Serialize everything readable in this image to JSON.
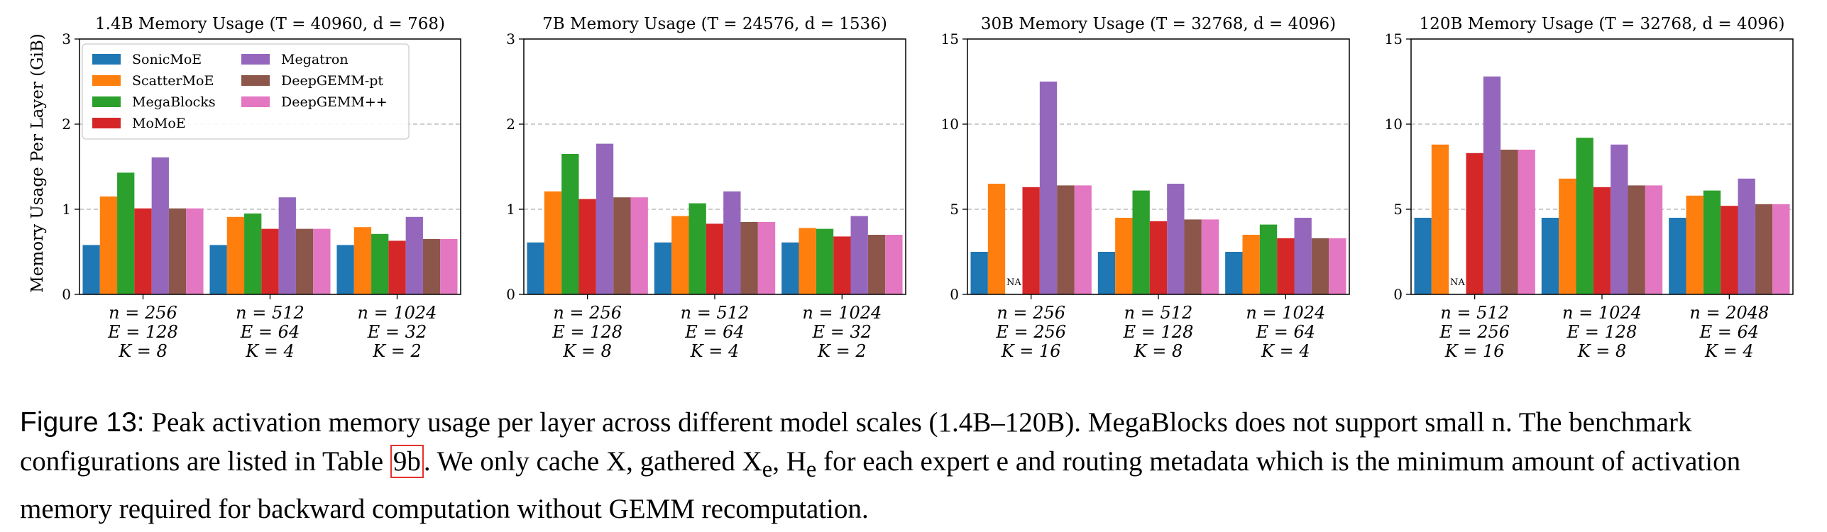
{
  "figure": {
    "ylabel": "Memory Usage Per Layer (GiB)",
    "caption": {
      "label": "Figure 13:",
      "text_1": "Peak activation memory usage per layer across different model scales (1.4B–120B). MegaBlocks does not support small n. The benchmark configurations are listed in Table",
      "table_ref": "9b",
      "text_2": ". We only cache X, gathered X",
      "sub_e1": "e",
      "text_3": ", H",
      "sub_e2": "e",
      "text_4": " for each expert e and routing metadata which is the minimum amount of activation memory required for backward computation without GEMM recomputation."
    }
  },
  "series": [
    {
      "name": "SonicMoE",
      "color": "#1f77b4"
    },
    {
      "name": "ScatterMoE",
      "color": "#ff7f0e"
    },
    {
      "name": "MegaBlocks",
      "color": "#2ca02c"
    },
    {
      "name": "MoMoE",
      "color": "#d62728"
    },
    {
      "name": "Megatron",
      "color": "#9467bd"
    },
    {
      "name": "DeepGEMM-pt",
      "color": "#8c564b"
    },
    {
      "name": "DeepGEMM++",
      "color": "#e377c2"
    }
  ],
  "chart_data": [
    {
      "type": "bar",
      "title": "1.4B Memory Usage (T = 40960, d = 768)",
      "ylabel": "Memory Usage Per Layer (GiB)",
      "ylim": [
        0,
        3
      ],
      "yticks": [
        "0",
        "1",
        "2",
        "3"
      ],
      "ytick_values": [
        0,
        1,
        2,
        3
      ],
      "grid": "dashed horizontal",
      "legend": "top-left",
      "categories": [
        [
          "n = 256",
          "E = 128",
          "K = 8"
        ],
        [
          "n = 512",
          "E = 64",
          "K = 4"
        ],
        [
          "n = 1024",
          "E = 32",
          "K = 2"
        ]
      ],
      "series": [
        {
          "name": "SonicMoE",
          "values": [
            0.58,
            0.58,
            0.58
          ]
        },
        {
          "name": "ScatterMoE",
          "values": [
            1.15,
            0.91,
            0.79
          ]
        },
        {
          "name": "MegaBlocks",
          "values": [
            1.43,
            0.95,
            0.71
          ]
        },
        {
          "name": "MoMoE",
          "values": [
            1.01,
            0.77,
            0.63
          ]
        },
        {
          "name": "Megatron",
          "values": [
            1.61,
            1.14,
            0.91
          ]
        },
        {
          "name": "DeepGEMM-pt",
          "values": [
            1.01,
            0.77,
            0.65
          ]
        },
        {
          "name": "DeepGEMM++",
          "values": [
            1.01,
            0.77,
            0.65
          ]
        }
      ],
      "na": []
    },
    {
      "type": "bar",
      "title": "7B Memory Usage (T = 24576, d = 1536)",
      "ylim": [
        0,
        3
      ],
      "yticks": [
        "0",
        "1",
        "2",
        "3"
      ],
      "ytick_values": [
        0,
        1,
        2,
        3
      ],
      "grid": "dashed horizontal",
      "categories": [
        [
          "n = 256",
          "E = 128",
          "K = 8"
        ],
        [
          "n = 512",
          "E = 64",
          "K = 4"
        ],
        [
          "n = 1024",
          "E = 32",
          "K = 2"
        ]
      ],
      "series": [
        {
          "name": "SonicMoE",
          "values": [
            0.61,
            0.61,
            0.61
          ]
        },
        {
          "name": "ScatterMoE",
          "values": [
            1.21,
            0.92,
            0.78
          ]
        },
        {
          "name": "MegaBlocks",
          "values": [
            1.65,
            1.07,
            0.77
          ]
        },
        {
          "name": "MoMoE",
          "values": [
            1.12,
            0.83,
            0.68
          ]
        },
        {
          "name": "Megatron",
          "values": [
            1.77,
            1.21,
            0.92
          ]
        },
        {
          "name": "DeepGEMM-pt",
          "values": [
            1.14,
            0.85,
            0.7
          ]
        },
        {
          "name": "DeepGEMM++",
          "values": [
            1.14,
            0.85,
            0.7
          ]
        }
      ],
      "na": []
    },
    {
      "type": "bar",
      "title": "30B Memory Usage (T = 32768, d = 4096)",
      "ylim": [
        0,
        15
      ],
      "yticks": [
        "0",
        "5",
        "10",
        "15"
      ],
      "ytick_values": [
        0,
        5,
        10,
        15
      ],
      "grid": "dashed horizontal",
      "categories": [
        [
          "n = 256",
          "E = 256",
          "K = 16"
        ],
        [
          "n = 512",
          "E = 128",
          "K = 8"
        ],
        [
          "n = 1024",
          "E = 64",
          "K = 4"
        ]
      ],
      "series": [
        {
          "name": "SonicMoE",
          "values": [
            2.5,
            2.5,
            2.5
          ]
        },
        {
          "name": "ScatterMoE",
          "values": [
            6.5,
            4.5,
            3.5
          ]
        },
        {
          "name": "MegaBlocks",
          "values": [
            null,
            6.1,
            4.1
          ]
        },
        {
          "name": "MoMoE",
          "values": [
            6.3,
            4.3,
            3.3
          ]
        },
        {
          "name": "Megatron",
          "values": [
            12.5,
            6.5,
            4.5
          ]
        },
        {
          "name": "DeepGEMM-pt",
          "values": [
            6.4,
            4.4,
            3.3
          ]
        },
        {
          "name": "DeepGEMM++",
          "values": [
            6.4,
            4.4,
            3.3
          ]
        }
      ],
      "na": [
        {
          "series": "MegaBlocks",
          "category": 0,
          "label": "NA"
        }
      ]
    },
    {
      "type": "bar",
      "title": "120B Memory Usage (T = 32768, d = 4096)",
      "ylim": [
        0,
        15
      ],
      "yticks": [
        "0",
        "5",
        "10",
        "15"
      ],
      "ytick_values": [
        0,
        5,
        10,
        15
      ],
      "grid": "dashed horizontal",
      "categories": [
        [
          "n = 512",
          "E = 256",
          "K = 16"
        ],
        [
          "n = 1024",
          "E = 128",
          "K = 8"
        ],
        [
          "n = 2048",
          "E = 64",
          "K = 4"
        ]
      ],
      "series": [
        {
          "name": "SonicMoE",
          "values": [
            4.5,
            4.5,
            4.5
          ]
        },
        {
          "name": "ScatterMoE",
          "values": [
            8.8,
            6.8,
            5.8
          ]
        },
        {
          "name": "MegaBlocks",
          "values": [
            null,
            9.2,
            6.1
          ]
        },
        {
          "name": "MoMoE",
          "values": [
            8.3,
            6.3,
            5.2
          ]
        },
        {
          "name": "Megatron",
          "values": [
            12.8,
            8.8,
            6.8
          ]
        },
        {
          "name": "DeepGEMM-pt",
          "values": [
            8.5,
            6.4,
            5.3
          ]
        },
        {
          "name": "DeepGEMM++",
          "values": [
            8.5,
            6.4,
            5.3
          ]
        }
      ],
      "na": [
        {
          "series": "MegaBlocks",
          "category": 0,
          "label": "NA"
        }
      ]
    }
  ]
}
